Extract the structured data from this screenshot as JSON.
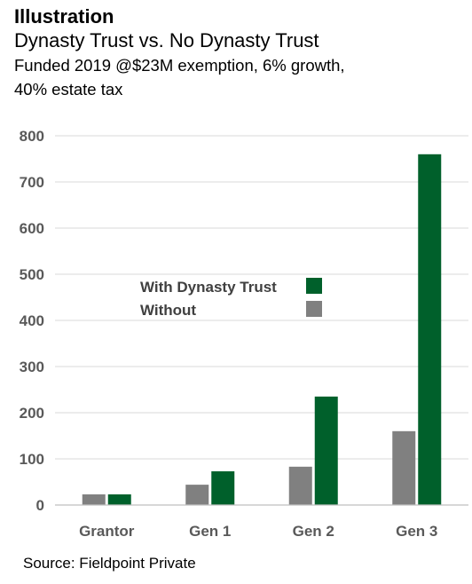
{
  "header": {
    "title": "Illustration",
    "subtitle": "Dynasty Trust vs. No Dynasty Trust",
    "description": "Funded 2019 @$23M exemption, 6% growth,\n40% estate tax"
  },
  "footer": {
    "source": "Source: Fieldpoint Private"
  },
  "chart_data": {
    "type": "bar",
    "title": "",
    "xlabel": "",
    "ylabel": "",
    "categories": [
      "Grantor",
      "Gen 1",
      "Gen 2",
      "Gen 3"
    ],
    "series": [
      {
        "name": "Without",
        "values": [
          23,
          44,
          83,
          160
        ],
        "color": "#808080"
      },
      {
        "name": "With Dynasty Trust",
        "values": [
          23,
          73,
          235,
          760
        ],
        "color": "#00602b"
      }
    ],
    "ylim": [
      0,
      800
    ],
    "yticks": [
      0,
      100,
      200,
      300,
      400,
      500,
      600,
      700,
      800
    ],
    "grid": true,
    "legend": {
      "position": "center-left",
      "order": [
        "With Dynasty Trust",
        "Without"
      ]
    }
  }
}
